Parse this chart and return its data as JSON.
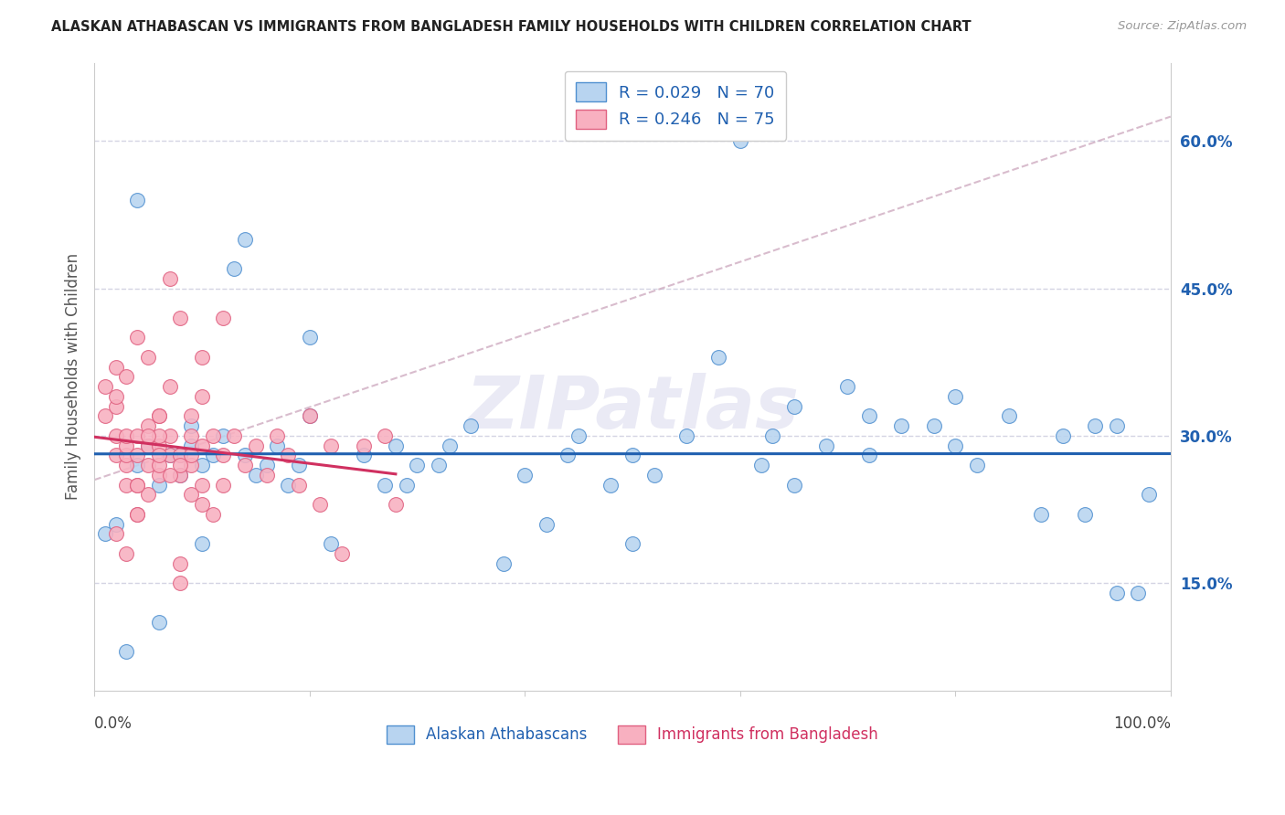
{
  "title": "ALASKAN ATHABASCAN VS IMMIGRANTS FROM BANGLADESH FAMILY HOUSEHOLDS WITH CHILDREN CORRELATION CHART",
  "source": "Source: ZipAtlas.com",
  "ylabel": "Family Households with Children",
  "ytick_vals": [
    0.15,
    0.3,
    0.45,
    0.6
  ],
  "ytick_labels": [
    "15.0%",
    "30.0%",
    "45.0%",
    "60.0%"
  ],
  "legend_label1": "Alaskan Athabascans",
  "legend_label2": "Immigrants from Bangladesh",
  "R1": 0.029,
  "N1": 70,
  "R2": 0.246,
  "N2": 75,
  "color_blue_fill": "#b8d4f0",
  "color_blue_edge": "#5090d0",
  "color_blue_line": "#2060b0",
  "color_pink_fill": "#f8b0c0",
  "color_pink_edge": "#e06080",
  "color_pink_line": "#d03060",
  "color_dashed": "#c8a0b8",
  "grid_color": "#d0d0e0",
  "title_color": "#222222",
  "source_color": "#999999",
  "tick_color": "#2060b0",
  "watermark_color": "#eaeaf5",
  "background": "#ffffff",
  "ylim_min": 0.04,
  "ylim_max": 0.68,
  "xlim_min": 0.0,
  "xlim_max": 1.0,
  "blue_x": [
    0.02,
    0.04,
    0.05,
    0.06,
    0.07,
    0.08,
    0.08,
    0.09,
    0.1,
    0.11,
    0.12,
    0.13,
    0.14,
    0.15,
    0.16,
    0.17,
    0.18,
    0.2,
    0.22,
    0.25,
    0.27,
    0.28,
    0.3,
    0.32,
    0.33,
    0.35,
    0.38,
    0.4,
    0.42,
    0.45,
    0.48,
    0.5,
    0.52,
    0.55,
    0.58,
    0.6,
    0.62,
    0.63,
    0.65,
    0.68,
    0.7,
    0.72,
    0.75,
    0.78,
    0.8,
    0.82,
    0.85,
    0.88,
    0.9,
    0.92,
    0.93,
    0.95,
    0.97,
    0.98,
    0.01,
    0.03,
    0.06,
    0.1,
    0.14,
    0.2,
    0.5,
    0.65,
    0.8,
    0.95,
    0.04,
    0.09,
    0.19,
    0.29,
    0.44,
    0.72
  ],
  "blue_y": [
    0.21,
    0.54,
    0.29,
    0.25,
    0.28,
    0.28,
    0.26,
    0.31,
    0.27,
    0.28,
    0.3,
    0.47,
    0.28,
    0.26,
    0.27,
    0.29,
    0.25,
    0.32,
    0.19,
    0.28,
    0.25,
    0.29,
    0.27,
    0.27,
    0.29,
    0.31,
    0.17,
    0.26,
    0.21,
    0.3,
    0.25,
    0.28,
    0.26,
    0.3,
    0.38,
    0.6,
    0.27,
    0.3,
    0.33,
    0.29,
    0.35,
    0.32,
    0.31,
    0.31,
    0.34,
    0.27,
    0.32,
    0.22,
    0.3,
    0.22,
    0.31,
    0.31,
    0.14,
    0.24,
    0.2,
    0.08,
    0.11,
    0.19,
    0.5,
    0.4,
    0.19,
    0.25,
    0.29,
    0.14,
    0.27,
    0.29,
    0.27,
    0.25,
    0.28,
    0.28
  ],
  "pink_x": [
    0.01,
    0.01,
    0.02,
    0.02,
    0.02,
    0.02,
    0.03,
    0.03,
    0.03,
    0.03,
    0.03,
    0.04,
    0.04,
    0.04,
    0.04,
    0.05,
    0.05,
    0.05,
    0.05,
    0.06,
    0.06,
    0.06,
    0.07,
    0.07,
    0.07,
    0.08,
    0.08,
    0.08,
    0.09,
    0.09,
    0.1,
    0.1,
    0.1,
    0.11,
    0.12,
    0.12,
    0.13,
    0.14,
    0.15,
    0.16,
    0.17,
    0.18,
    0.19,
    0.2,
    0.21,
    0.22,
    0.23,
    0.25,
    0.27,
    0.28,
    0.02,
    0.03,
    0.04,
    0.05,
    0.06,
    0.06,
    0.07,
    0.08,
    0.09,
    0.1,
    0.02,
    0.03,
    0.04,
    0.04,
    0.05,
    0.06,
    0.06,
    0.07,
    0.08,
    0.08,
    0.09,
    0.09,
    0.1,
    0.11,
    0.12
  ],
  "pink_y": [
    0.32,
    0.35,
    0.28,
    0.3,
    0.33,
    0.37,
    0.25,
    0.27,
    0.28,
    0.29,
    0.3,
    0.22,
    0.25,
    0.28,
    0.3,
    0.24,
    0.27,
    0.29,
    0.31,
    0.26,
    0.27,
    0.29,
    0.28,
    0.3,
    0.46,
    0.26,
    0.28,
    0.42,
    0.27,
    0.32,
    0.25,
    0.29,
    0.38,
    0.22,
    0.28,
    0.42,
    0.3,
    0.27,
    0.29,
    0.26,
    0.3,
    0.28,
    0.25,
    0.32,
    0.23,
    0.29,
    0.18,
    0.29,
    0.3,
    0.23,
    0.34,
    0.36,
    0.4,
    0.38,
    0.3,
    0.32,
    0.35,
    0.27,
    0.24,
    0.23,
    0.2,
    0.18,
    0.22,
    0.25,
    0.3,
    0.28,
    0.32,
    0.26,
    0.15,
    0.17,
    0.28,
    0.3,
    0.34,
    0.3,
    0.25
  ]
}
